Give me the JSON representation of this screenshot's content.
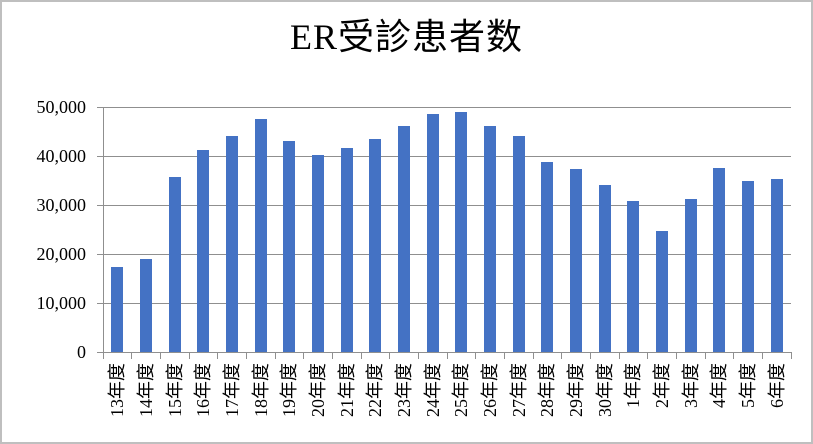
{
  "chart_data": {
    "type": "bar",
    "title": "ER受診患者数",
    "categories": [
      "13年度",
      "14年度",
      "15年度",
      "16年度",
      "17年度",
      "18年度",
      "19年度",
      "20年度",
      "21年度",
      "22年度",
      "23年度",
      "24年度",
      "25年度",
      "26年度",
      "27年度",
      "28年度",
      "29年度",
      "30年度",
      "1年度",
      "2年度",
      "3年度",
      "4年度",
      "5年度",
      "6年度"
    ],
    "values": [
      17300,
      18900,
      35800,
      41200,
      44000,
      47600,
      43000,
      40300,
      41700,
      43500,
      46100,
      48500,
      48900,
      46200,
      44100,
      38800,
      37400,
      34100,
      30800,
      24700,
      31300,
      37600,
      34800,
      35400
    ],
    "xlabel": "",
    "ylabel": "",
    "ylim": [
      0,
      50000
    ],
    "ytick_interval": 10000,
    "ytick_labels": [
      "0",
      "10,000",
      "20,000",
      "30,000",
      "40,000",
      "50,000"
    ],
    "grid": true,
    "legend": "none",
    "colors": {
      "bar": "#4472C4",
      "gridline": "#8f8f8f",
      "axis": "#8f8f8f",
      "text": "#000000",
      "background": "#ffffff",
      "chart_border": "#bfbfbf"
    }
  }
}
